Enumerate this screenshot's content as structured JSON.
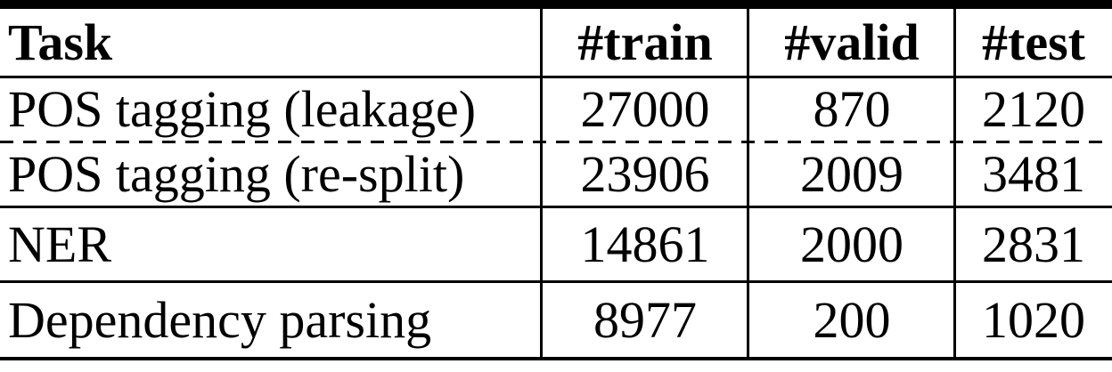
{
  "table": {
    "title": "dataset-split-statistics",
    "headers": {
      "task": "Task",
      "train": "#train",
      "valid": "#valid",
      "test": "#test"
    },
    "rows": [
      {
        "task": "POS tagging (leakage)",
        "train": "27000",
        "valid": "870",
        "test": "2120"
      },
      {
        "task": "POS tagging (re-split)",
        "train": "23906",
        "valid": "2009",
        "test": "3481"
      },
      {
        "task": "NER",
        "train": "14861",
        "valid": "2000",
        "test": "2831"
      },
      {
        "task": "Dependency parsing",
        "train": "8977",
        "valid": "200",
        "test": "1020"
      }
    ],
    "separators": {
      "after_row_0": "dashed",
      "after_row_1": "solid",
      "after_row_2": "solid"
    }
  },
  "colors": {
    "background": "#ffffff",
    "text": "#000000",
    "rule": "#000000"
  }
}
